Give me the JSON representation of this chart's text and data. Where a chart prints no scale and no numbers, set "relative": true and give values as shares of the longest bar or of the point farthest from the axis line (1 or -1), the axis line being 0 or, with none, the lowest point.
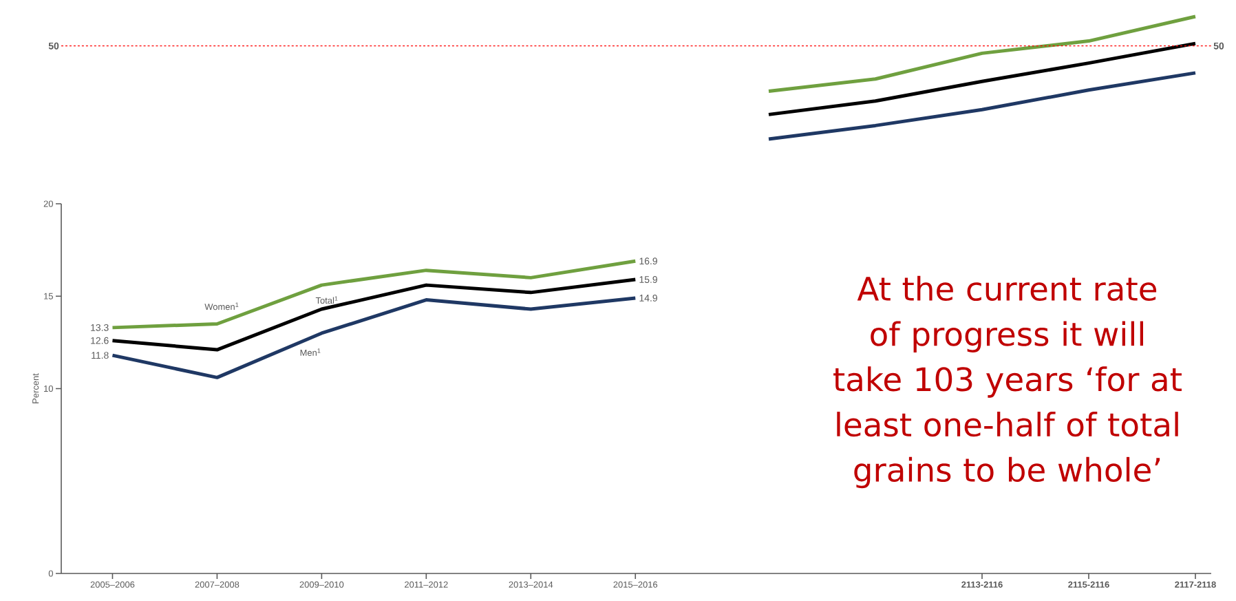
{
  "chart_data": [
    {
      "type": "line",
      "categories": [
        "2005–2006",
        "2007–2008",
        "2009–2010",
        "2011–2012",
        "2013–2014",
        "2015–2016"
      ],
      "ylabel": "Percent",
      "ylim": [
        0,
        20
      ],
      "yticks": [
        0,
        10,
        15,
        20
      ],
      "series": [
        {
          "name": "Women$^{1}$",
          "color": "#6fa03f",
          "values": [
            13.3,
            13.5,
            15.6,
            16.4,
            16.0,
            16.9
          ],
          "value_labels": [
            "13.3",
            null,
            null,
            null,
            null,
            "16.9"
          ]
        },
        {
          "name": "Total$^{1}$",
          "color": "#000000",
          "values": [
            12.6,
            12.1,
            14.3,
            15.6,
            15.2,
            15.9
          ],
          "value_labels": [
            "12.6",
            null,
            null,
            null,
            null,
            "15.9"
          ]
        },
        {
          "name": "Men$^{1}$",
          "color": "#1f3864",
          "values": [
            11.8,
            10.6,
            13.0,
            14.8,
            14.3,
            14.9
          ],
          "value_labels": [
            "11.8",
            null,
            null,
            null,
            null,
            "14.9"
          ]
        }
      ]
    },
    {
      "type": "line",
      "relative": true,
      "categories": [
        null,
        null,
        "2113-2116",
        "2115-2116",
        "2117-2118"
      ],
      "series": [
        {
          "color": "#6fa03f",
          "values": [
            0.39,
            0.49,
            0.7,
            0.8,
            1.0
          ]
        },
        {
          "color": "#000000",
          "values": [
            0.2,
            0.31,
            0.47,
            0.62,
            0.78
          ]
        },
        {
          "color": "#1f3864",
          "values": [
            0,
            0.11,
            0.24,
            0.4,
            0.54
          ]
        }
      ],
      "ref_lines": [
        {
          "axis": "y",
          "value": 0.76,
          "color": "#ff0000",
          "line_style": "dashed"
        }
      ],
      "annotations": [
        "50",
        "At the current rate of progress it will take 103 years ‘for at least one-half of total grains to be whole’"
      ]
    }
  ]
}
